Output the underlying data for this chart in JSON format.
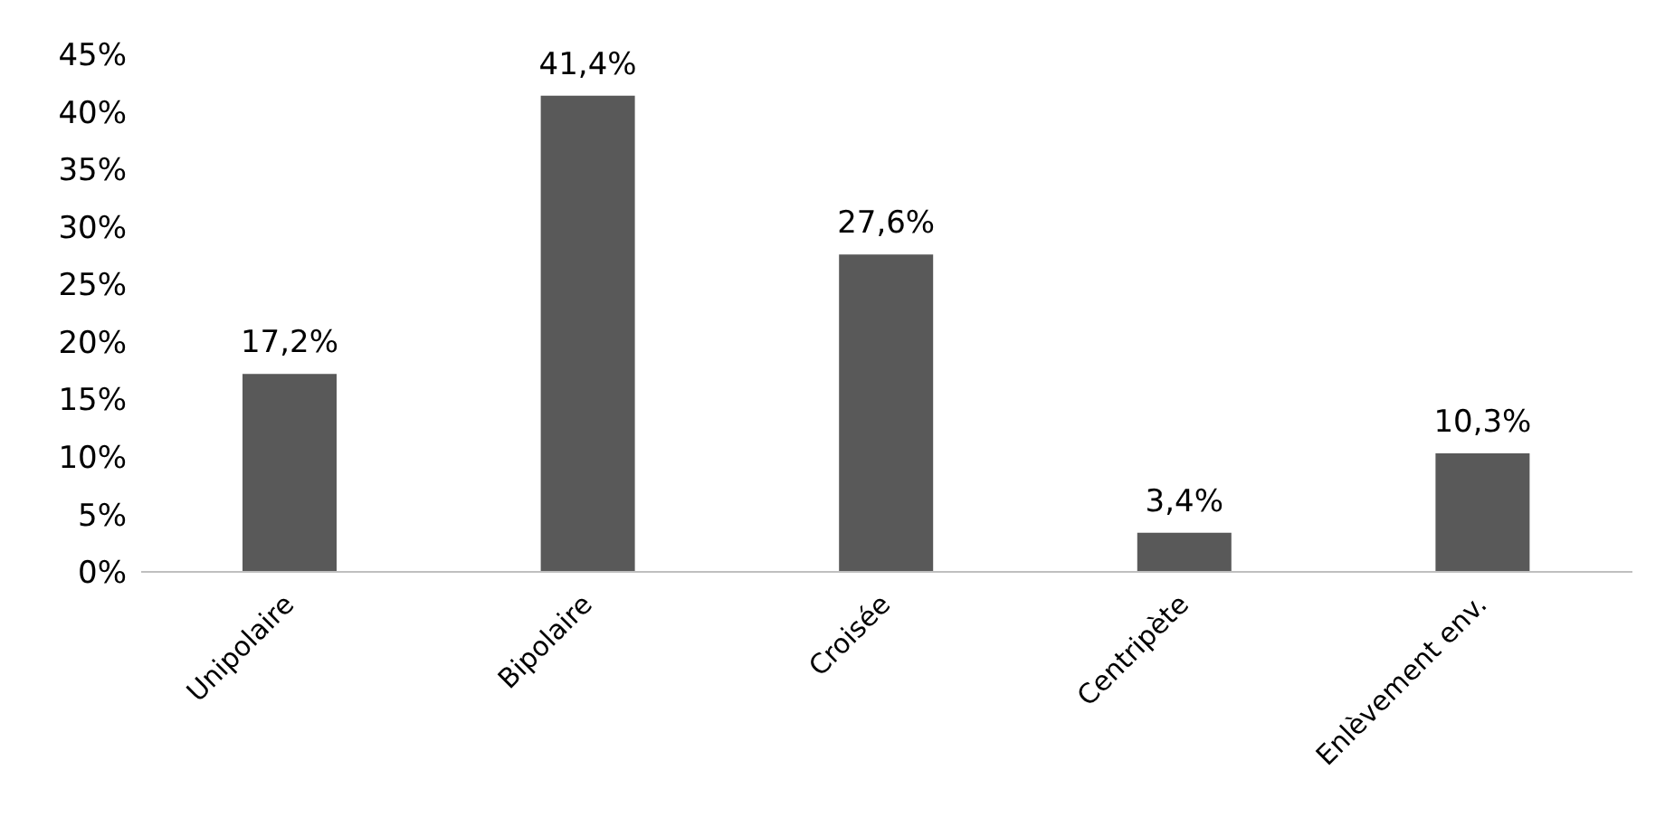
{
  "chart_data": {
    "type": "bar",
    "categories": [
      "Unipolaire",
      "Bipolaire",
      "Croisée",
      "Centripète",
      "Enlèvement env."
    ],
    "values": [
      17.2,
      41.4,
      27.6,
      3.4,
      10.3
    ],
    "value_labels": [
      "17,2%",
      "41,4%",
      "27,6%",
      "3,4%",
      "10,3%"
    ],
    "color": "#595959",
    "ylim": [
      0,
      45
    ],
    "yticks": [
      {
        "value": 0,
        "label": "0%"
      },
      {
        "value": 5,
        "label": "5%"
      },
      {
        "value": 10,
        "label": "10%"
      },
      {
        "value": 15,
        "label": "15%"
      },
      {
        "value": 20,
        "label": "20%"
      },
      {
        "value": 25,
        "label": "25%"
      },
      {
        "value": 30,
        "label": "30%"
      },
      {
        "value": 35,
        "label": "35%"
      },
      {
        "value": 40,
        "label": "40%"
      },
      {
        "value": 45,
        "label": "45%"
      }
    ],
    "grid": false,
    "legend": false
  }
}
